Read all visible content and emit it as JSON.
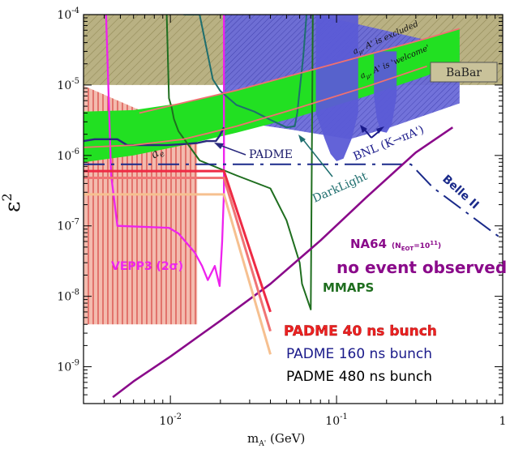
{
  "chart_data": {
    "type": "line",
    "title": "",
    "xlabel_main": "m",
    "xlabel_sub": "A'",
    "xlabel_unit": " (GeV)",
    "ylabel_main": "ε",
    "ylabel_exp": "2",
    "xscale": "log",
    "yscale": "log",
    "xlim": [
      0.003,
      1.0
    ],
    "ylim": [
      3e-10,
      0.0001
    ],
    "x_ticks": [
      {
        "value": 0.01,
        "base": "10",
        "exp": "-2"
      },
      {
        "value": 0.1,
        "base": "10",
        "exp": "-1"
      },
      {
        "value": 1.0,
        "base": "1",
        "exp": ""
      }
    ],
    "y_ticks": [
      {
        "value": 0.0001,
        "base": "10",
        "exp": "-4"
      },
      {
        "value": 1e-05,
        "base": "10",
        "exp": "-5"
      },
      {
        "value": 1e-06,
        "base": "10",
        "exp": "-6"
      },
      {
        "value": 1e-07,
        "base": "10",
        "exp": "-7"
      },
      {
        "value": 1e-08,
        "base": "10",
        "exp": "-8"
      },
      {
        "value": 1e-09,
        "base": "10",
        "exp": "-9"
      }
    ],
    "regions": [
      {
        "name": "BaBar",
        "color": "#b5ad7c",
        "hatch": "#9a8f5a",
        "x": [
          0.003,
          1.0,
          1.0,
          0.003
        ],
        "y": [
          0.0001,
          0.0001,
          1e-05,
          1e-05
        ]
      },
      {
        "name": "red-hatched",
        "color": "#f0a49a",
        "hatch": "#cc2222",
        "x": [
          0.003,
          0.0145,
          0.0145,
          0.003
        ],
        "y": [
          9.8e-06,
          1.95e-06,
          4e-09,
          4e-09
        ]
      },
      {
        "name": "excluded-band",
        "color": "#6a6ad8",
        "x": [
          0.021,
          0.075,
          0.55,
          0.55,
          0.21,
          0.12,
          0.055,
          0.021
        ],
        "y": [
          0.0001,
          0.0001,
          3.4e-05,
          5.5e-06,
          2.5e-06,
          1.7e-06,
          2.3e-06,
          3.2e-06
        ]
      },
      {
        "name": "welcome-band",
        "color": "#22e022",
        "x": [
          0.003,
          0.006,
          0.012,
          0.025,
          0.06,
          0.15,
          0.35,
          0.55,
          0.55,
          0.35,
          0.15,
          0.06,
          0.025,
          0.012,
          0.006,
          0.003
        ],
        "y": [
          4.2e-06,
          4.4e-06,
          5.6e-06,
          8.4e-06,
          1.47e-05,
          2.65e-05,
          4.6e-05,
          6.3e-05,
          2.1e-05,
          1.36e-05,
          6.9e-06,
          3.6e-06,
          2.1e-06,
          1.4e-06,
          1e-06,
          8e-07
        ]
      },
      {
        "name": "BNL-left-lobe",
        "color": "#5b5bd6",
        "x": [
          0.075,
          0.085,
          0.092,
          0.1,
          0.11,
          0.123,
          0.135,
          0.135,
          0.075
        ],
        "y": [
          4e-06,
          1.7e-06,
          1.05e-06,
          8.3e-07,
          9e-07,
          1.7e-06,
          4e-06,
          0.0001,
          0.0001
        ]
      },
      {
        "name": "BNL-right-lobe",
        "color": "#5b5bd6",
        "x": [
          0.168,
          0.175,
          0.185,
          0.2,
          0.215,
          0.23,
          0.23,
          0.168
        ],
        "y": [
          7e-06,
          3.3e-06,
          2.2e-06,
          2.1e-06,
          2.8e-06,
          7e-06,
          3e-05,
          3e-05
        ]
      }
    ],
    "curves": [
      {
        "name": "VEPP3 (2σ)",
        "color": "#ee22ee",
        "width": 2.3,
        "x": [
          0.0041,
          0.0044,
          0.0048,
          0.0098,
          0.0112,
          0.014,
          0.0155,
          0.0168,
          0.0185,
          0.0198,
          0.0205,
          0.021,
          0.021
        ],
        "y": [
          0.0001,
          5.2e-07,
          1e-07,
          9.4e-08,
          7.8e-08,
          4.2e-08,
          2.7e-08,
          1.7e-08,
          2.7e-08,
          1.4e-08,
          6e-08,
          3e-07,
          0.0001
        ]
      },
      {
        "name": "PADME",
        "color": "#2a2a7e",
        "width": 2.4,
        "x": [
          0.003,
          0.0035,
          0.0048,
          0.0055,
          0.007,
          0.0095,
          0.012,
          0.0145,
          0.0165,
          0.018,
          0.0188,
          0.0198,
          0.021
        ],
        "y": [
          1.6e-06,
          1.7e-06,
          1.7e-06,
          1.4e-06,
          1.4e-06,
          1.4e-06,
          1.45e-06,
          1.5e-06,
          1.6e-06,
          1.6e-06,
          1.6e-06,
          1.9e-06,
          2.5e-06
        ]
      },
      {
        "name": "DarkLight",
        "color": "#1e6e6e",
        "width": 2.0,
        "x": [
          0.012,
          0.015,
          0.018,
          0.02,
          0.025,
          0.032,
          0.04,
          0.05,
          0.056,
          0.058,
          0.06,
          0.063,
          0.066
        ],
        "y": [
          0.0001,
          0.0001,
          1.2e-05,
          8.2e-06,
          5.2e-06,
          4.2e-06,
          3.2e-06,
          2.5e-06,
          2.6e-06,
          4e-06,
          8.51e-06,
          2.51e-05,
          0.0001
        ]
      },
      {
        "name": "MMAPS",
        "color": "#1f6e1f",
        "width": 2.0,
        "x": [
          0.0095,
          0.0098,
          0.0102,
          0.0105,
          0.0112,
          0.015,
          0.025,
          0.04,
          0.05,
          0.06,
          0.062,
          0.07,
          0.072
        ],
        "y": [
          0.0001,
          6.5e-06,
          4.7e-06,
          3.3e-06,
          2.2e-06,
          8.5e-07,
          5.2e-07,
          3.4e-07,
          1.2e-07,
          3e-08,
          1.5e-08,
          6.5e-09,
          0.0001
        ]
      },
      {
        "name": "Belle II",
        "color": "#1a2a8a",
        "width": 2.0,
        "dash": "26 8 4 8",
        "x": [
          0.003,
          0.28,
          0.38,
          1.0
        ],
        "y": [
          7.5e-07,
          7.5e-07,
          3.5e-07,
          6.4e-08
        ]
      },
      {
        "name": "NA64",
        "color": "#8a0a8a",
        "width": 2.6,
        "x": [
          0.0045,
          0.006,
          0.01,
          0.02,
          0.04,
          0.08,
          0.15,
          0.3,
          0.5
        ],
        "y": [
          3.7e-10,
          6.2e-10,
          1.4e-09,
          4.5e-09,
          1.5e-08,
          6.2e-08,
          2.5e-07,
          1.1e-06,
          2.5e-06
        ]
      },
      {
        "name": "PADME 40 ns bunch",
        "color": "#ee2a44",
        "width": 3.0,
        "x": [
          0.003,
          0.021,
          0.04
        ],
        "y": [
          6e-07,
          6e-07,
          6e-09
        ]
      },
      {
        "name": "PADME 160 ns bunch",
        "color": "#f07474",
        "width": 3.0,
        "x": [
          0.003,
          0.021,
          0.04
        ],
        "y": [
          4.8e-07,
          4.8e-07,
          3.2e-09
        ]
      },
      {
        "name": "PADME 480 ns bunch",
        "color": "#f6c090",
        "width": 3.0,
        "x": [
          0.003,
          0.021,
          0.04
        ],
        "y": [
          2.8e-07,
          2.8e-07,
          1.5e-09
        ]
      },
      {
        "name": "red-curve-top",
        "color": "#f07070",
        "width": 1.8,
        "x": [
          0.0065,
          0.012,
          0.025,
          0.06,
          0.15,
          0.35,
          0.55
        ],
        "y": [
          4e-06,
          5.6e-06,
          8.4e-06,
          1.47e-05,
          2.65e-05,
          4.6e-05,
          6.3e-05
        ]
      },
      {
        "name": "red-curve-bottom",
        "color": "#f07070",
        "width": 1.8,
        "x": [
          0.003,
          0.006,
          0.012,
          0.025,
          0.06,
          0.15,
          0.35
        ],
        "y": [
          1.3e-06,
          1.4e-06,
          1.7e-06,
          2.6e-06,
          4.8e-06,
          9.4e-06,
          1.85e-05
        ]
      }
    ],
    "annotations": {
      "babar": "BaBar",
      "padme": "PADME",
      "darklight": "DarkLight",
      "bnl": "BNL (K→πA')",
      "belle": "Belle II",
      "na64": "NA64",
      "na64_exposure": "(N",
      "na64_exposure_sub": "EOT",
      "na64_exposure_val": "=10",
      "na64_exposure_exp": "11",
      "na64_exposure_close": ")",
      "no_event": "no event observed",
      "mmaps": "MMAPS",
      "vepp3": "VEPP3 (2σ)",
      "excluded": "a",
      "excluded_sub": "μ",
      "excluded_rest": ", A' is excluded",
      "welcome": "a",
      "welcome_sub": "μ",
      "welcome_rest": ", A' is 'welcome'",
      "a_e": "a",
      "a_e_sub": "e",
      "legend_40": "PADME 40 ns bunch",
      "legend_160": "PADME 160 ns bunch",
      "legend_480": "PADME 480 ns bunch"
    },
    "legend_placement": "bottom-right",
    "colors": {
      "frame": "#000000",
      "legend_40": "#ee2222",
      "legend_160": "#1a1a8a",
      "legend_480": "#000000",
      "na64": "#8a0a8a",
      "vepp3": "#ee22ee",
      "mmaps": "#1f6e1f"
    }
  }
}
